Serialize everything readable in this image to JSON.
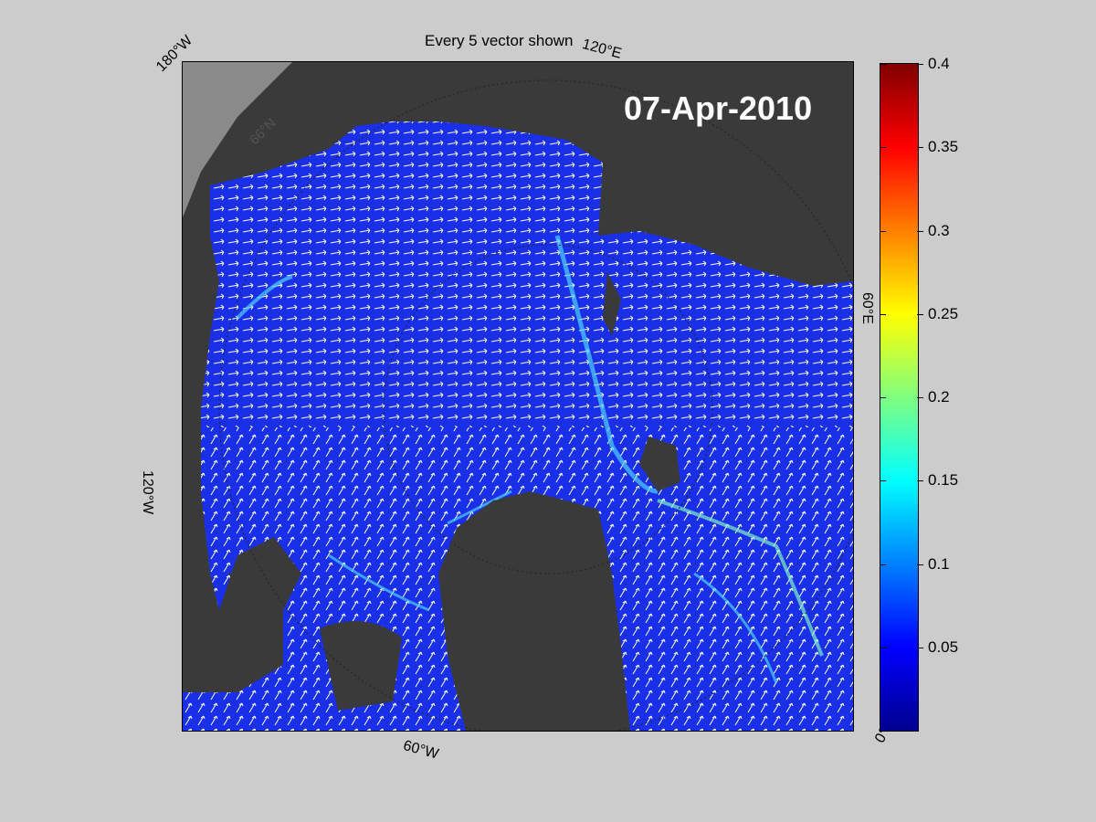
{
  "figure": {
    "title": "Every 5 vector shown",
    "date": "07-Apr-2010"
  },
  "map": {
    "labels": {
      "lon_180w": "180°W",
      "lon_120e": "120°E",
      "lon_60e": "60°E",
      "lon_120w": "120°W",
      "lon_60w": "60°W",
      "lon_0": "0°",
      "lat_66n": "66°N"
    },
    "colors": {
      "ocean": "#1a2fe8",
      "land": "#3a3a3a",
      "outside": "#8a8a8a",
      "vector": "#ffffff"
    }
  },
  "colorbar": {
    "ticks": [
      "0.4",
      "0.35",
      "0.3",
      "0.25",
      "0.2",
      "0.15",
      "0.1",
      "0.05"
    ],
    "min": 0,
    "max": 0.4,
    "colormap": "jet"
  }
}
